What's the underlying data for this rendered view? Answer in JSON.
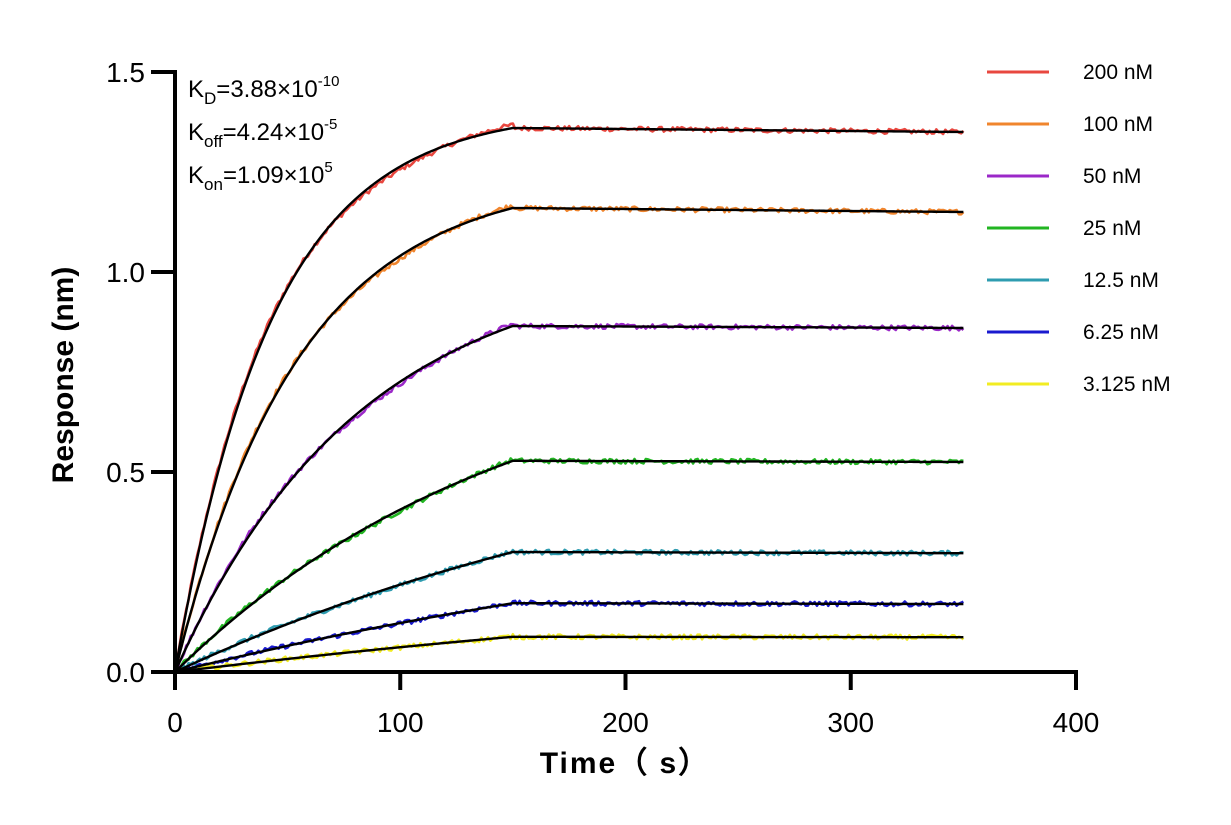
{
  "chart_data": {
    "type": "line",
    "xlabel": "Time（ s）",
    "ylabel": "Response (nm)",
    "xlim": [
      0,
      400
    ],
    "ylim": [
      0,
      1.5
    ],
    "x_ticks": [
      "0",
      "100",
      "200",
      "300",
      "400"
    ],
    "y_ticks": [
      "0.0",
      "0.5",
      "1.0",
      "1.5"
    ],
    "grid": false,
    "legend_position": "right",
    "association_end_s": 150,
    "dissociation_end_s": 350,
    "annotations": {
      "kd": {
        "base": "K",
        "sub": "D",
        "value": "=3.88×10",
        "exp": "-10"
      },
      "koff": {
        "base": "K",
        "sub": "off",
        "value": "=4.24×10",
        "exp": "-5"
      },
      "kon": {
        "base": "K",
        "sub": "on",
        "value": "=1.09×10",
        "exp": "5"
      }
    },
    "fit_color": "#000000",
    "series": [
      {
        "name": "200 nM",
        "color": "#E8473F",
        "plateau": 1.36,
        "end": 1.35
      },
      {
        "name": "100 nM",
        "color": "#F0852D",
        "plateau": 1.16,
        "end": 1.15
      },
      {
        "name": "50 nM",
        "color": "#9B28C8",
        "plateau": 0.865,
        "end": 0.86
      },
      {
        "name": "25 nM",
        "color": "#22B522",
        "plateau": 0.528,
        "end": 0.525
      },
      {
        "name": "12.5 nM",
        "color": "#2E9CB0",
        "plateau": 0.3,
        "end": 0.297
      },
      {
        "name": "6.25 nM",
        "color": "#1A1ACF",
        "plateau": 0.172,
        "end": 0.17
      },
      {
        "name": "3.125 nM",
        "color": "#F2EC22",
        "plateau": 0.088,
        "end": 0.087
      }
    ]
  }
}
